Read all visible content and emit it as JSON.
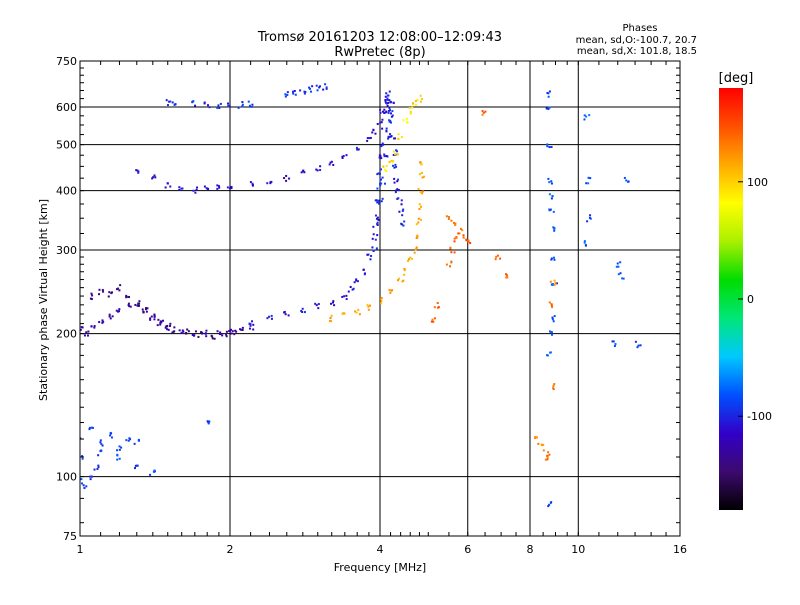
{
  "chart_data": {
    "type": "scatter",
    "title": "Tromsø 20161203 12:08:00–12:09:43",
    "subtitle": "RwPretec (8p)",
    "xlabel": "Frequency [MHz]",
    "ylabel": "Stationary phase Virtual Height [km]",
    "x_scale": "log",
    "y_scale": "log",
    "xlim": [
      1,
      16
    ],
    "ylim": [
      75,
      750
    ],
    "x_ticks": [
      1,
      2,
      4,
      6,
      8,
      10,
      16
    ],
    "x_tick_labels": [
      "1",
      "2",
      "4",
      "6",
      "8",
      "10",
      "16"
    ],
    "y_ticks": [
      75,
      100,
      200,
      300,
      400,
      500,
      600,
      750
    ],
    "y_tick_labels": [
      "75",
      "100",
      "200",
      "300",
      "400",
      "500",
      "600",
      "750"
    ],
    "grid": true,
    "info": {
      "heading": "Phases",
      "line1": "mean, sd,O:-100.7, 20.7",
      "line2": "mean, sd,X: 101.8, 18.5"
    },
    "colorbar": {
      "label": "[deg]",
      "range": [
        -180,
        180
      ],
      "ticks": [
        100,
        0,
        -100
      ],
      "tick_labels": [
        "100",
        "0",
        "-100"
      ],
      "stops": [
        "#000000",
        "#3c0a6e",
        "#3200c8",
        "#0050ff",
        "#00c8ff",
        "#00e678",
        "#00dc00",
        "#aaf000",
        "#ffff00",
        "#ffaa00",
        "#ff5000",
        "#ff0000"
      ]
    },
    "series": [
      {
        "phase": -125,
        "points": [
          [
            1.0,
            205
          ],
          [
            1.03,
            200
          ],
          [
            1.06,
            208
          ],
          [
            1.1,
            212
          ],
          [
            1.15,
            218
          ],
          [
            1.2,
            225
          ],
          [
            1.25,
            230
          ],
          [
            1.3,
            228
          ],
          [
            1.35,
            222
          ],
          [
            1.4,
            215
          ],
          [
            1.45,
            210
          ],
          [
            1.5,
            206
          ],
          [
            1.6,
            203
          ],
          [
            1.7,
            201
          ],
          [
            1.8,
            200
          ],
          [
            1.9,
            201
          ],
          [
            2.0,
            203
          ],
          [
            2.1,
            205
          ],
          [
            2.2,
            207
          ]
        ]
      },
      {
        "phase": -140,
        "points": [
          [
            1.05,
            240
          ],
          [
            1.1,
            245
          ],
          [
            1.15,
            242
          ],
          [
            1.2,
            250
          ],
          [
            1.25,
            238
          ],
          [
            1.3,
            232
          ],
          [
            1.35,
            225
          ],
          [
            1.4,
            218
          ],
          [
            1.45,
            212
          ],
          [
            1.5,
            208
          ],
          [
            1.55,
            204
          ],
          [
            1.65,
            202
          ],
          [
            1.75,
            199
          ],
          [
            1.85,
            198
          ],
          [
            1.95,
            200
          ],
          [
            2.05,
            202
          ]
        ]
      },
      {
        "phase": -105,
        "points": [
          [
            2.2,
            210
          ],
          [
            2.4,
            215
          ],
          [
            2.6,
            220
          ],
          [
            2.8,
            224
          ],
          [
            3.0,
            228
          ],
          [
            3.2,
            232
          ],
          [
            3.4,
            240
          ],
          [
            3.5,
            248
          ],
          [
            3.6,
            258
          ],
          [
            3.7,
            270
          ],
          [
            3.8,
            290
          ],
          [
            3.9,
            320
          ],
          [
            3.95,
            350
          ],
          [
            4.0,
            380
          ],
          [
            4.05,
            420
          ],
          [
            4.1,
            470
          ],
          [
            4.15,
            520
          ],
          [
            4.2,
            580
          ],
          [
            4.22,
            620
          ]
        ]
      },
      {
        "phase": -100,
        "points": [
          [
            3.9,
            300
          ],
          [
            3.92,
            340
          ],
          [
            3.95,
            380
          ],
          [
            3.98,
            410
          ],
          [
            4.0,
            440
          ],
          [
            4.02,
            470
          ],
          [
            4.05,
            500
          ],
          [
            4.08,
            540
          ],
          [
            4.1,
            580
          ],
          [
            4.12,
            610
          ],
          [
            4.14,
            630
          ],
          [
            4.16,
            640
          ],
          [
            4.18,
            620
          ],
          [
            4.2,
            590
          ],
          [
            4.22,
            560
          ],
          [
            4.25,
            520
          ],
          [
            4.28,
            480
          ],
          [
            4.3,
            450
          ],
          [
            4.32,
            420
          ],
          [
            4.35,
            400
          ],
          [
            4.38,
            380
          ],
          [
            4.4,
            360
          ],
          [
            4.45,
            340
          ]
        ]
      },
      {
        "phase": -110,
        "points": [
          [
            1.3,
            440
          ],
          [
            1.4,
            425
          ],
          [
            1.5,
            412
          ],
          [
            1.6,
            405
          ],
          [
            1.7,
            402
          ],
          [
            1.8,
            403
          ],
          [
            1.9,
            405
          ],
          [
            2.0,
            408
          ],
          [
            2.2,
            412
          ],
          [
            2.4,
            418
          ],
          [
            2.6,
            425
          ],
          [
            2.8,
            435
          ],
          [
            3.0,
            445
          ],
          [
            3.2,
            455
          ],
          [
            3.4,
            470
          ],
          [
            3.6,
            490
          ],
          [
            3.8,
            510
          ],
          [
            3.9,
            530
          ],
          [
            4.0,
            560
          ],
          [
            4.05,
            590
          ]
        ]
      },
      {
        "phase": -95,
        "points": [
          [
            2.6,
            640
          ],
          [
            2.7,
            645
          ],
          [
            2.8,
            650
          ],
          [
            2.9,
            655
          ],
          [
            3.0,
            660
          ],
          [
            3.1,
            662
          ],
          [
            1.7,
            610
          ],
          [
            1.8,
            608
          ],
          [
            1.9,
            606
          ],
          [
            2.0,
            604
          ],
          [
            2.1,
            606
          ],
          [
            2.2,
            608
          ],
          [
            1.5,
            612
          ],
          [
            1.55,
            610
          ]
        ]
      },
      {
        "phase": 115,
        "points": [
          [
            3.2,
            215
          ],
          [
            3.4,
            218
          ],
          [
            3.6,
            222
          ],
          [
            3.8,
            228
          ],
          [
            4.0,
            235
          ],
          [
            4.2,
            245
          ],
          [
            4.4,
            258
          ],
          [
            4.5,
            270
          ],
          [
            4.6,
            285
          ],
          [
            4.7,
            300
          ],
          [
            4.75,
            320
          ],
          [
            4.8,
            345
          ],
          [
            4.82,
            370
          ],
          [
            4.84,
            400
          ],
          [
            4.85,
            430
          ],
          [
            4.86,
            460
          ]
        ]
      },
      {
        "phase": 95,
        "points": [
          [
            4.3,
            480
          ],
          [
            4.4,
            520
          ],
          [
            4.5,
            560
          ],
          [
            4.6,
            590
          ],
          [
            4.7,
            615
          ],
          [
            4.8,
            625
          ],
          [
            4.2,
            460
          ],
          [
            4.1,
            445
          ]
        ]
      },
      {
        "phase": 140,
        "points": [
          [
            5.5,
            280
          ],
          [
            5.6,
            300
          ],
          [
            5.7,
            315
          ],
          [
            5.8,
            330
          ],
          [
            5.9,
            320
          ],
          [
            6.0,
            310
          ],
          [
            5.5,
            350
          ],
          [
            5.6,
            340
          ],
          [
            5.2,
            230
          ],
          [
            5.1,
            215
          ],
          [
            6.5,
            580
          ],
          [
            6.9,
            290
          ],
          [
            7.2,
            265
          ]
        ]
      },
      {
        "phase": -90,
        "points": [
          [
            1.0,
            120
          ],
          [
            1.05,
            125
          ],
          [
            1.1,
            118
          ],
          [
            1.15,
            122
          ],
          [
            1.2,
            115
          ],
          [
            1.25,
            120
          ],
          [
            1.3,
            118
          ],
          [
            1.0,
            98
          ],
          [
            1.02,
            96
          ],
          [
            1.05,
            100
          ],
          [
            1.08,
            104
          ],
          [
            1.0,
            110
          ],
          [
            1.1,
            112
          ],
          [
            1.2,
            110
          ],
          [
            1.3,
            105
          ],
          [
            1.4,
            102
          ],
          [
            1.8,
            130
          ]
        ]
      },
      {
        "phase": -85,
        "points": [
          [
            8.7,
            640
          ],
          [
            8.7,
            600
          ],
          [
            8.75,
            500
          ],
          [
            8.8,
            420
          ],
          [
            8.8,
            390
          ],
          [
            8.85,
            360
          ],
          [
            8.9,
            330
          ],
          [
            8.9,
            290
          ],
          [
            8.95,
            255
          ],
          [
            8.9,
            215
          ],
          [
            8.8,
            200
          ],
          [
            8.75,
            180
          ],
          [
            8.8,
            88
          ],
          [
            10.5,
            420
          ],
          [
            10.5,
            350
          ],
          [
            10.4,
            310
          ],
          [
            10.4,
            570
          ],
          [
            12.0,
            280
          ],
          [
            12.2,
            265
          ],
          [
            11.8,
            190
          ],
          [
            12.5,
            420
          ],
          [
            13.2,
            190
          ]
        ]
      },
      {
        "phase": 130,
        "points": [
          [
            8.2,
            120
          ],
          [
            8.4,
            118
          ],
          [
            8.6,
            112
          ],
          [
            8.7,
            110
          ],
          [
            8.8,
            230
          ],
          [
            8.9,
            155
          ],
          [
            8.9,
            255
          ]
        ]
      }
    ]
  }
}
